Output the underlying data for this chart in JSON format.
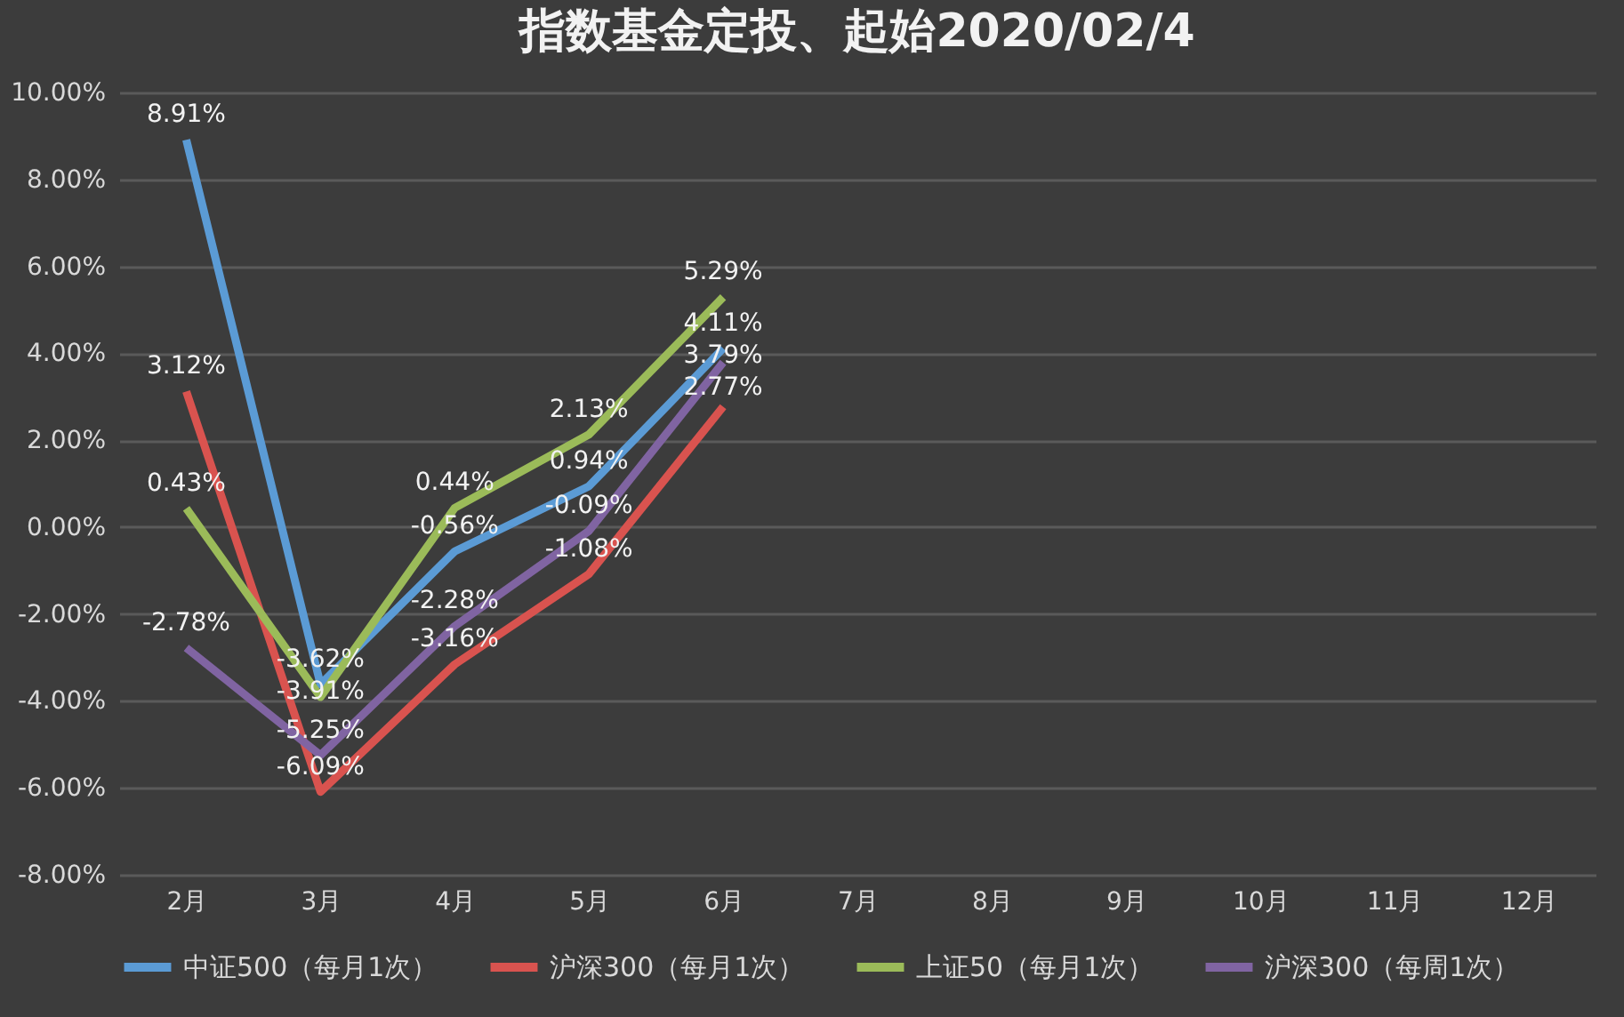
{
  "chart_data": {
    "type": "line",
    "title": "指数基金定投、起始2020/02/4",
    "categories": [
      "2月",
      "3月",
      "4月",
      "5月",
      "6月",
      "7月",
      "8月",
      "9月",
      "10月",
      "11月",
      "12月"
    ],
    "series": [
      {
        "name": "中证500（每月1次）",
        "color": "#5b9bd5",
        "values": [
          8.91,
          -3.62,
          -0.56,
          0.94,
          4.11,
          null,
          null,
          null,
          null,
          null,
          null
        ],
        "value_labels": [
          "8.91%",
          "-3.62%",
          "-0.56%",
          "0.94%",
          "4.11%",
          null,
          null,
          null,
          null,
          null,
          null
        ]
      },
      {
        "name": "沪深300（每月1次）",
        "color": "#d9534f",
        "values": [
          3.12,
          -6.09,
          -3.16,
          -1.08,
          2.77,
          null,
          null,
          null,
          null,
          null,
          null
        ],
        "value_labels": [
          "3.12%",
          "-6.09%",
          "-3.16%",
          "-1.08%",
          "2.77%",
          null,
          null,
          null,
          null,
          null,
          null
        ]
      },
      {
        "name": "上证50（每月1次）",
        "color": "#9bbb59",
        "values": [
          0.43,
          -3.91,
          0.44,
          2.13,
          5.29,
          null,
          null,
          null,
          null,
          null,
          null
        ],
        "value_labels": [
          "0.43%",
          "-3.91%",
          "0.44%",
          "2.13%",
          "5.29%",
          null,
          null,
          null,
          null,
          null,
          null
        ]
      },
      {
        "name": "沪深300（每周1次）",
        "color": "#8064a2",
        "values": [
          -2.78,
          -5.25,
          -2.28,
          -0.09,
          3.79,
          null,
          null,
          null,
          null,
          null,
          null
        ],
        "value_labels": [
          "-2.78%",
          "-5.25%",
          "-2.28%",
          "-0.09%",
          "3.79%",
          null,
          null,
          null,
          null,
          null,
          null
        ]
      }
    ],
    "ylim": [
      -8,
      10
    ],
    "yticks": [
      {
        "value": -8,
        "label": "-8.00%"
      },
      {
        "value": -6,
        "label": "-6.00%"
      },
      {
        "value": -4,
        "label": "-4.00%"
      },
      {
        "value": -2,
        "label": "-2.00%"
      },
      {
        "value": 0,
        "label": "0.00%"
      },
      {
        "value": 2,
        "label": "2.00%"
      },
      {
        "value": 4,
        "label": "4.00%"
      },
      {
        "value": 6,
        "label": "6.00%"
      },
      {
        "value": 8,
        "label": "8.00%"
      },
      {
        "value": 10,
        "label": "10.00%"
      }
    ],
    "grid": "y",
    "legend": "bottom"
  }
}
